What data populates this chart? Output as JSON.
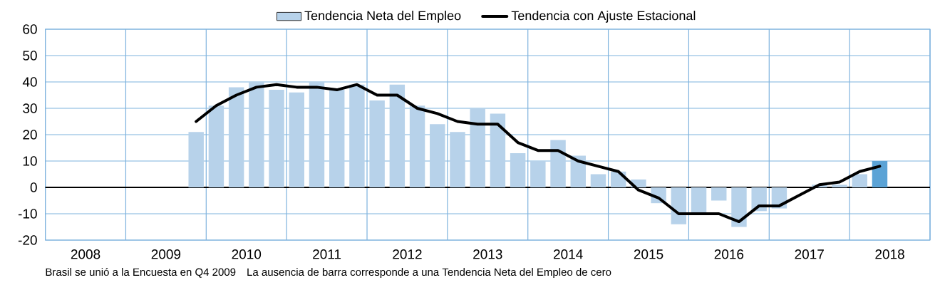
{
  "chart_data": {
    "type": "bar",
    "series": [
      {
        "name": "Tendencia Neta del Empleo",
        "colors": [
          "#b7d2ea",
          "#b7d2ea",
          "#b7d2ea",
          "#b7d2ea",
          "#b7d2ea",
          "#b7d2ea",
          "#b7d2ea",
          "#b7d2ea",
          "#b7d2ea",
          "#b7d2ea",
          "#b7d2ea",
          "#b7d2ea",
          "#b7d2ea",
          "#b7d2ea",
          "#b7d2ea",
          "#b7d2ea",
          "#b7d2ea",
          "#b7d2ea",
          "#b7d2ea",
          "#b7d2ea",
          "#b7d2ea",
          "#b7d2ea",
          "#b7d2ea",
          "#b7d2ea",
          "#b7d2ea",
          "#b7d2ea",
          "#b7d2ea",
          "#b7d2ea",
          "#b7d2ea",
          "#b7d2ea",
          "#b7d2ea",
          "#b7d2ea",
          "#b7d2ea",
          "#b7d2ea",
          "#5ba3d6"
        ],
        "x": [
          2009.875,
          2010.125,
          2010.375,
          2010.625,
          2010.875,
          2011.125,
          2011.375,
          2011.625,
          2011.875,
          2012.125,
          2012.375,
          2012.625,
          2012.875,
          2013.125,
          2013.375,
          2013.625,
          2013.875,
          2014.125,
          2014.375,
          2014.625,
          2014.875,
          2015.125,
          2015.375,
          2015.625,
          2015.875,
          2016.125,
          2016.375,
          2016.625,
          2016.875,
          2017.125,
          2017.375,
          2017.625,
          2017.875,
          2018.125,
          2018.375
        ],
        "values": [
          21,
          31,
          38,
          40,
          37,
          36,
          40,
          37,
          39,
          33,
          39,
          31,
          24,
          21,
          30,
          28,
          13,
          10,
          18,
          12,
          5,
          6,
          3,
          -6,
          -14,
          -10,
          -5,
          -15,
          -9,
          -8,
          0,
          1,
          1,
          5,
          10
        ]
      },
      {
        "name": "Tendencia con Ajuste Estacional",
        "type": "line",
        "color": "#000000",
        "line_style": "solid",
        "x": [
          2009.875,
          2010.125,
          2010.375,
          2010.625,
          2010.875,
          2011.125,
          2011.375,
          2011.625,
          2011.875,
          2012.125,
          2012.375,
          2012.625,
          2012.875,
          2013.125,
          2013.375,
          2013.625,
          2013.875,
          2014.125,
          2014.375,
          2014.625,
          2014.875,
          2015.125,
          2015.375,
          2015.625,
          2015.875,
          2016.125,
          2016.375,
          2016.625,
          2016.875,
          2017.125,
          2017.375,
          2017.625,
          2017.875,
          2018.125,
          2018.375
        ],
        "values": [
          25,
          31,
          35,
          38,
          39,
          38,
          38,
          37,
          39,
          35,
          35,
          30,
          28,
          25,
          24,
          24,
          17,
          14,
          14,
          10,
          8,
          6,
          -1,
          -4,
          -10,
          -10,
          -10,
          -13,
          -7,
          -7,
          -3,
          1,
          2,
          6,
          8
        ]
      }
    ],
    "xlim": [
      2008,
      2019
    ],
    "xticks": [
      {
        "value": 2008,
        "label": null
      },
      {
        "value": 2008.5,
        "label": "2008"
      },
      {
        "value": 2009,
        "label": null
      },
      {
        "value": 2009.5,
        "label": "2009"
      },
      {
        "value": 2010,
        "label": null
      },
      {
        "value": 2010.5,
        "label": "2010"
      },
      {
        "value": 2011,
        "label": null
      },
      {
        "value": 2011.5,
        "label": "2011"
      },
      {
        "value": 2012,
        "label": null
      },
      {
        "value": 2012.5,
        "label": "2012"
      },
      {
        "value": 2013,
        "label": null
      },
      {
        "value": 2013.5,
        "label": "2013"
      },
      {
        "value": 2014,
        "label": null
      },
      {
        "value": 2014.5,
        "label": "2014"
      },
      {
        "value": 2015,
        "label": null
      },
      {
        "value": 2015.5,
        "label": "2015"
      },
      {
        "value": 2016,
        "label": null
      },
      {
        "value": 2016.5,
        "label": "2016"
      },
      {
        "value": 2017,
        "label": null
      },
      {
        "value": 2017.5,
        "label": "2017"
      },
      {
        "value": 2018,
        "label": null
      },
      {
        "value": 2018.5,
        "label": "2018"
      },
      {
        "value": 2019,
        "label": null
      }
    ],
    "ylim": [
      -20,
      60
    ],
    "yticks": [
      -20,
      -10,
      0,
      10,
      20,
      30,
      40,
      50,
      60
    ],
    "grid": true,
    "legend": "top",
    "ref_lines": [
      {
        "axis": "y",
        "value": 0,
        "color": "#000000"
      }
    ],
    "annotations": [
      "Brasil se unió a la Encuesta en Q4 2009",
      "La ausencia de barra corresponde a una Tendencia Neta del Empleo de cero"
    ]
  }
}
